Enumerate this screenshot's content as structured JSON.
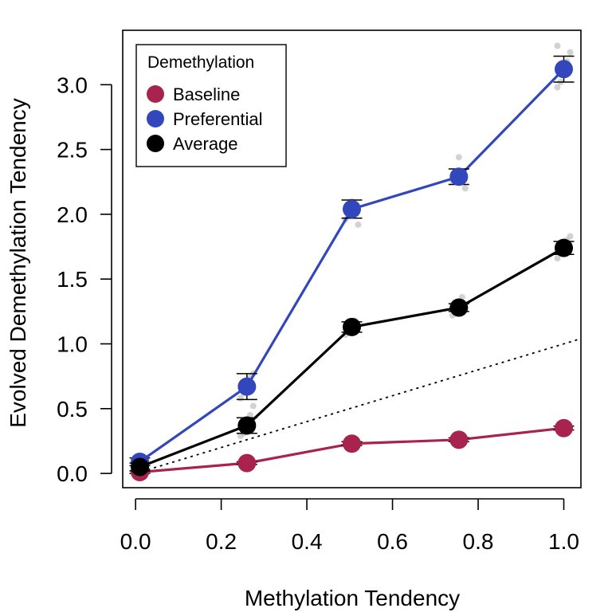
{
  "chart_data": {
    "type": "line",
    "title": "",
    "xlabel": "Methylation Tendency",
    "ylabel": "Evolved Demethylation Tendency",
    "xlim": [
      -0.03,
      1.04
    ],
    "ylim": [
      -0.11,
      3.42
    ],
    "x_ticks": [
      0.0,
      0.2,
      0.4,
      0.6,
      0.8,
      1.0
    ],
    "x_tick_labels": [
      "0.0",
      "0.2",
      "0.4",
      "0.6",
      "0.8",
      "1.0"
    ],
    "y_ticks": [
      0.0,
      0.5,
      1.0,
      1.5,
      2.0,
      2.5,
      3.0
    ],
    "y_tick_labels": [
      "0.0",
      "0.5",
      "1.0",
      "1.5",
      "2.0",
      "2.5",
      "3.0"
    ],
    "grid": false,
    "legend": {
      "title": "Demethylation",
      "position": "top-left",
      "entries": [
        "Baseline",
        "Preferential",
        "Average"
      ]
    },
    "reference_line": {
      "style": "dotted",
      "color": "#000000",
      "x": [
        0.0,
        1.04
      ],
      "y": [
        0.0,
        1.04
      ]
    },
    "x": [
      0.01,
      0.26,
      0.505,
      0.755,
      1.0
    ],
    "series": [
      {
        "name": "Baseline",
        "color": "#A8234D",
        "values": [
          0.01,
          0.08,
          0.23,
          0.26,
          0.35
        ],
        "error": [
          0.01,
          0.01,
          0.015,
          0.015,
          0.015
        ]
      },
      {
        "name": "Preferential",
        "color": "#3347BD",
        "values": [
          0.09,
          0.67,
          2.04,
          2.29,
          3.12
        ],
        "error": [
          0.03,
          0.1,
          0.07,
          0.06,
          0.1
        ]
      },
      {
        "name": "Average",
        "color": "#000000",
        "values": [
          0.05,
          0.37,
          1.13,
          1.28,
          1.74
        ],
        "error": [
          0.03,
          0.06,
          0.04,
          0.03,
          0.05
        ]
      }
    ],
    "replicates": [
      {
        "x": 0.01,
        "values": [
          0.02,
          0.04,
          0.06,
          0.08,
          0.1
        ]
      },
      {
        "x": 0.26,
        "values": [
          0.29,
          0.31,
          0.36,
          0.45,
          0.52,
          0.58,
          0.62,
          0.7,
          0.74,
          0.77
        ]
      },
      {
        "x": 0.505,
        "values": [
          1.07,
          1.1,
          1.15,
          1.18,
          1.92,
          1.96,
          2.05,
          2.1
        ]
      },
      {
        "x": 0.755,
        "values": [
          1.22,
          1.25,
          1.31,
          1.36,
          2.2,
          2.26,
          2.33,
          2.44
        ]
      },
      {
        "x": 1.0,
        "values": [
          1.66,
          1.7,
          1.75,
          1.8,
          1.83,
          2.98,
          3.02,
          3.1,
          3.18,
          3.25,
          3.3
        ]
      }
    ]
  }
}
